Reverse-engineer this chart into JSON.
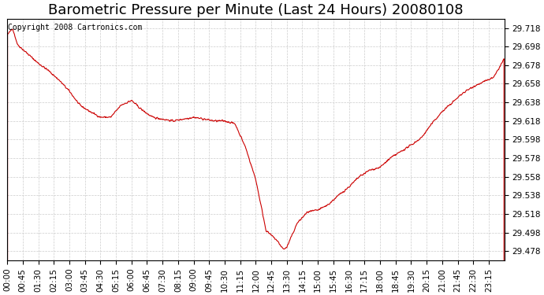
{
  "title": "Barometric Pressure per Minute (Last 24 Hours) 20080108",
  "copyright": "Copyright 2008 Cartronics.com",
  "background_color": "#ffffff",
  "plot_bg_color": "#ffffff",
  "line_color": "#cc0000",
  "grid_color": "#cccccc",
  "ylim": [
    29.468,
    29.728
  ],
  "yticks": [
    29.478,
    29.498,
    29.518,
    29.538,
    29.558,
    29.578,
    29.598,
    29.618,
    29.638,
    29.658,
    29.678,
    29.698,
    29.718
  ],
  "xtick_labels": [
    "00:00",
    "00:45",
    "01:30",
    "02:15",
    "03:00",
    "03:45",
    "04:30",
    "05:15",
    "06:00",
    "06:45",
    "07:30",
    "08:15",
    "09:00",
    "09:45",
    "10:30",
    "11:15",
    "12:00",
    "12:45",
    "13:30",
    "14:15",
    "15:00",
    "15:45",
    "16:30",
    "17:15",
    "18:00",
    "18:45",
    "19:30",
    "20:15",
    "21:00",
    "21:45",
    "22:30",
    "23:15"
  ],
  "waypoints_t": [
    0,
    15,
    30,
    60,
    90,
    120,
    150,
    180,
    210,
    240,
    270,
    300,
    330,
    360,
    390,
    420,
    450,
    480,
    510,
    540,
    570,
    600,
    630,
    660,
    690,
    720,
    750,
    780,
    800,
    810,
    840,
    870,
    900,
    930,
    960,
    990,
    1020,
    1050,
    1080,
    1110,
    1140,
    1170,
    1200,
    1230,
    1260,
    1290,
    1320,
    1350,
    1380,
    1410,
    1440
  ],
  "waypoints_v": [
    29.71,
    29.718,
    29.7,
    29.69,
    29.68,
    29.672,
    29.662,
    29.65,
    29.635,
    29.628,
    29.622,
    29.622,
    29.635,
    29.64,
    29.63,
    29.622,
    29.62,
    29.618,
    29.62,
    29.622,
    29.62,
    29.618,
    29.618,
    29.615,
    29.59,
    29.555,
    29.5,
    29.49,
    29.48,
    29.482,
    29.508,
    29.52,
    29.522,
    29.528,
    29.538,
    29.547,
    29.558,
    29.565,
    29.568,
    29.578,
    29.585,
    29.592,
    29.6,
    29.615,
    29.628,
    29.638,
    29.648,
    29.655,
    29.66,
    29.665,
    29.685
  ],
  "title_fontsize": 13,
  "tick_fontsize": 7.5,
  "copyright_fontsize": 7
}
